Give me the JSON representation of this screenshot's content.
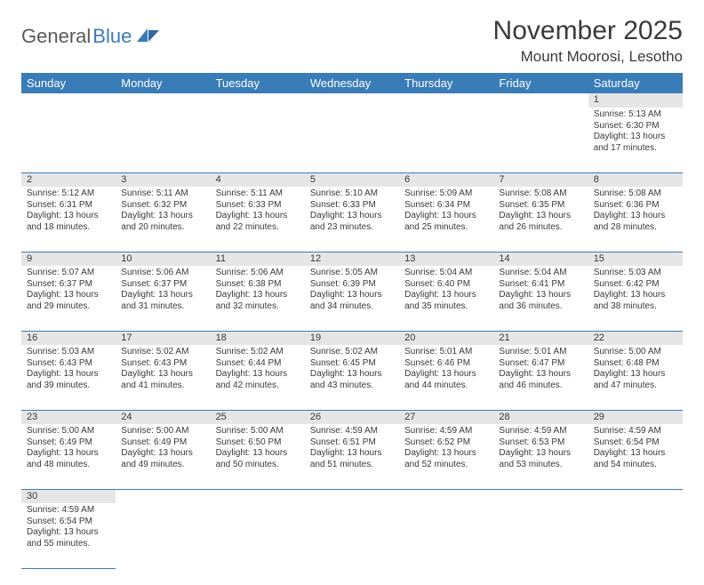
{
  "logo": {
    "general": "General",
    "blue": "Blue"
  },
  "title": "November 2025",
  "location": "Mount Moorosi, Lesotho",
  "colors": {
    "header_bg": "#3a7cb8",
    "header_text": "#ffffff",
    "daynum_bg": "#e6e6e6",
    "text": "#3a3a3a",
    "rule": "#3a7cb8",
    "logo_gray": "#5a5a5a",
    "logo_blue": "#3a7cb8"
  },
  "day_labels": [
    "Sunday",
    "Monday",
    "Tuesday",
    "Wednesday",
    "Thursday",
    "Friday",
    "Saturday"
  ],
  "weeks": [
    [
      null,
      null,
      null,
      null,
      null,
      null,
      {
        "n": "1",
        "sunrise": "Sunrise: 5:13 AM",
        "sunset": "Sunset: 6:30 PM",
        "day1": "Daylight: 13 hours",
        "day2": "and 17 minutes."
      }
    ],
    [
      {
        "n": "2",
        "sunrise": "Sunrise: 5:12 AM",
        "sunset": "Sunset: 6:31 PM",
        "day1": "Daylight: 13 hours",
        "day2": "and 18 minutes."
      },
      {
        "n": "3",
        "sunrise": "Sunrise: 5:11 AM",
        "sunset": "Sunset: 6:32 PM",
        "day1": "Daylight: 13 hours",
        "day2": "and 20 minutes."
      },
      {
        "n": "4",
        "sunrise": "Sunrise: 5:11 AM",
        "sunset": "Sunset: 6:33 PM",
        "day1": "Daylight: 13 hours",
        "day2": "and 22 minutes."
      },
      {
        "n": "5",
        "sunrise": "Sunrise: 5:10 AM",
        "sunset": "Sunset: 6:33 PM",
        "day1": "Daylight: 13 hours",
        "day2": "and 23 minutes."
      },
      {
        "n": "6",
        "sunrise": "Sunrise: 5:09 AM",
        "sunset": "Sunset: 6:34 PM",
        "day1": "Daylight: 13 hours",
        "day2": "and 25 minutes."
      },
      {
        "n": "7",
        "sunrise": "Sunrise: 5:08 AM",
        "sunset": "Sunset: 6:35 PM",
        "day1": "Daylight: 13 hours",
        "day2": "and 26 minutes."
      },
      {
        "n": "8",
        "sunrise": "Sunrise: 5:08 AM",
        "sunset": "Sunset: 6:36 PM",
        "day1": "Daylight: 13 hours",
        "day2": "and 28 minutes."
      }
    ],
    [
      {
        "n": "9",
        "sunrise": "Sunrise: 5:07 AM",
        "sunset": "Sunset: 6:37 PM",
        "day1": "Daylight: 13 hours",
        "day2": "and 29 minutes."
      },
      {
        "n": "10",
        "sunrise": "Sunrise: 5:06 AM",
        "sunset": "Sunset: 6:37 PM",
        "day1": "Daylight: 13 hours",
        "day2": "and 31 minutes."
      },
      {
        "n": "11",
        "sunrise": "Sunrise: 5:06 AM",
        "sunset": "Sunset: 6:38 PM",
        "day1": "Daylight: 13 hours",
        "day2": "and 32 minutes."
      },
      {
        "n": "12",
        "sunrise": "Sunrise: 5:05 AM",
        "sunset": "Sunset: 6:39 PM",
        "day1": "Daylight: 13 hours",
        "day2": "and 34 minutes."
      },
      {
        "n": "13",
        "sunrise": "Sunrise: 5:04 AM",
        "sunset": "Sunset: 6:40 PM",
        "day1": "Daylight: 13 hours",
        "day2": "and 35 minutes."
      },
      {
        "n": "14",
        "sunrise": "Sunrise: 5:04 AM",
        "sunset": "Sunset: 6:41 PM",
        "day1": "Daylight: 13 hours",
        "day2": "and 36 minutes."
      },
      {
        "n": "15",
        "sunrise": "Sunrise: 5:03 AM",
        "sunset": "Sunset: 6:42 PM",
        "day1": "Daylight: 13 hours",
        "day2": "and 38 minutes."
      }
    ],
    [
      {
        "n": "16",
        "sunrise": "Sunrise: 5:03 AM",
        "sunset": "Sunset: 6:43 PM",
        "day1": "Daylight: 13 hours",
        "day2": "and 39 minutes."
      },
      {
        "n": "17",
        "sunrise": "Sunrise: 5:02 AM",
        "sunset": "Sunset: 6:43 PM",
        "day1": "Daylight: 13 hours",
        "day2": "and 41 minutes."
      },
      {
        "n": "18",
        "sunrise": "Sunrise: 5:02 AM",
        "sunset": "Sunset: 6:44 PM",
        "day1": "Daylight: 13 hours",
        "day2": "and 42 minutes."
      },
      {
        "n": "19",
        "sunrise": "Sunrise: 5:02 AM",
        "sunset": "Sunset: 6:45 PM",
        "day1": "Daylight: 13 hours",
        "day2": "and 43 minutes."
      },
      {
        "n": "20",
        "sunrise": "Sunrise: 5:01 AM",
        "sunset": "Sunset: 6:46 PM",
        "day1": "Daylight: 13 hours",
        "day2": "and 44 minutes."
      },
      {
        "n": "21",
        "sunrise": "Sunrise: 5:01 AM",
        "sunset": "Sunset: 6:47 PM",
        "day1": "Daylight: 13 hours",
        "day2": "and 46 minutes."
      },
      {
        "n": "22",
        "sunrise": "Sunrise: 5:00 AM",
        "sunset": "Sunset: 6:48 PM",
        "day1": "Daylight: 13 hours",
        "day2": "and 47 minutes."
      }
    ],
    [
      {
        "n": "23",
        "sunrise": "Sunrise: 5:00 AM",
        "sunset": "Sunset: 6:49 PM",
        "day1": "Daylight: 13 hours",
        "day2": "and 48 minutes."
      },
      {
        "n": "24",
        "sunrise": "Sunrise: 5:00 AM",
        "sunset": "Sunset: 6:49 PM",
        "day1": "Daylight: 13 hours",
        "day2": "and 49 minutes."
      },
      {
        "n": "25",
        "sunrise": "Sunrise: 5:00 AM",
        "sunset": "Sunset: 6:50 PM",
        "day1": "Daylight: 13 hours",
        "day2": "and 50 minutes."
      },
      {
        "n": "26",
        "sunrise": "Sunrise: 4:59 AM",
        "sunset": "Sunset: 6:51 PM",
        "day1": "Daylight: 13 hours",
        "day2": "and 51 minutes."
      },
      {
        "n": "27",
        "sunrise": "Sunrise: 4:59 AM",
        "sunset": "Sunset: 6:52 PM",
        "day1": "Daylight: 13 hours",
        "day2": "and 52 minutes."
      },
      {
        "n": "28",
        "sunrise": "Sunrise: 4:59 AM",
        "sunset": "Sunset: 6:53 PM",
        "day1": "Daylight: 13 hours",
        "day2": "and 53 minutes."
      },
      {
        "n": "29",
        "sunrise": "Sunrise: 4:59 AM",
        "sunset": "Sunset: 6:54 PM",
        "day1": "Daylight: 13 hours",
        "day2": "and 54 minutes."
      }
    ],
    [
      {
        "n": "30",
        "sunrise": "Sunrise: 4:59 AM",
        "sunset": "Sunset: 6:54 PM",
        "day1": "Daylight: 13 hours",
        "day2": "and 55 minutes."
      },
      null,
      null,
      null,
      null,
      null,
      null
    ]
  ]
}
